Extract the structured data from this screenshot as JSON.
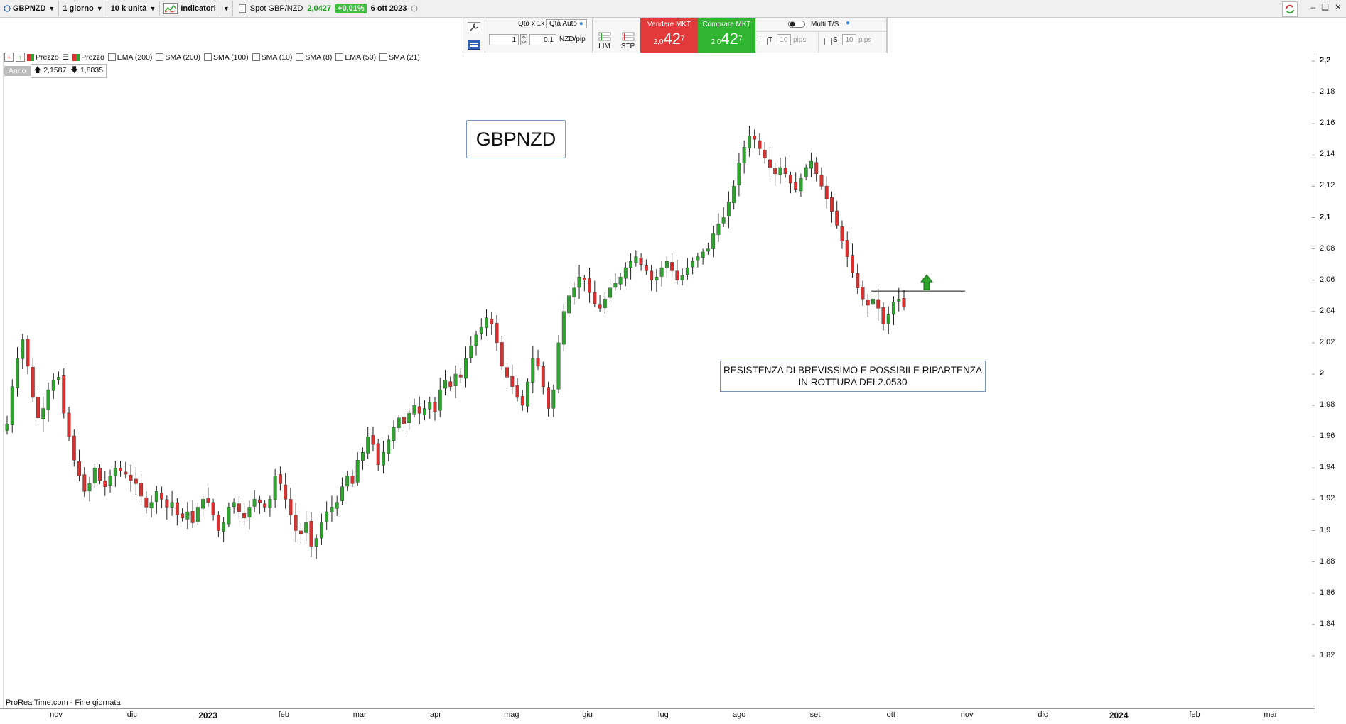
{
  "toolbar": {
    "symbol": "GBPNZD",
    "timeframe": "1 giorno",
    "units": "10 k unità",
    "indicators_label": "Indicatori",
    "spot_label": "Spot GBP/NZD",
    "spot_price": "2,0427",
    "spot_change": "+0,01%",
    "date": "6 ott 2023"
  },
  "order_panel": {
    "qty_label": "Qtà  x 1k",
    "qty_auto_label": "Qtà Auto",
    "qty_value": "1",
    "pip_value": "0.1",
    "pip_unit": "NZD/pip",
    "lim_label": "LIM",
    "stp_label": "STP",
    "sell_label": "Vendere MKT",
    "sell_prefix": "2,0",
    "sell_big": "42",
    "sell_sup": "7",
    "buy_label": "Comprare MKT",
    "buy_prefix": "2,0",
    "buy_big": "42",
    "buy_sup": "7",
    "multi_label": "Multi T/S",
    "t_label": "T",
    "s_label": "S",
    "t_value": "10",
    "s_value": "10",
    "pips_label": "pips"
  },
  "legend": {
    "items": [
      "Prezzo",
      "Prezzo",
      "EMA (200)",
      "SMA (200)",
      "SMA (100)",
      "SMA (10)",
      "SMA (8)",
      "EMA (50)",
      "SMA (21)"
    ],
    "range_label": "Anno",
    "high": "2,1587",
    "low": "1,8835"
  },
  "annotations": {
    "title": "GBPNZD",
    "note_line1": "RESISTENZA DI BREVISSIMO E POSSIBILE RIPARTENZA",
    "note_line2": "IN ROTTURA DEI 2.0530"
  },
  "footer": {
    "source": "ProRealTime.com - Fine giornata"
  },
  "chart_data": {
    "type": "candlestick",
    "ylim": [
      1.8,
      2.2
    ],
    "yticks": [
      "2,2",
      "2,18",
      "2,16",
      "2,14",
      "2,12",
      "2,1",
      "2,08",
      "2,06",
      "2,04",
      "2,02",
      "2",
      "1,98",
      "1,96",
      "1,94",
      "1,92",
      "1,9",
      "1,88",
      "1,86",
      "1,84",
      "1,82"
    ],
    "xticks": [
      "nov",
      "dic",
      "2023",
      "feb",
      "mar",
      "apr",
      "mag",
      "giu",
      "lug",
      "ago",
      "set",
      "ott",
      "nov",
      "dic",
      "2024",
      "feb",
      "mar"
    ],
    "resistance_level": 2.053,
    "closes": [
      1.968,
      1.992,
      2.01,
      2.022,
      2.005,
      1.985,
      1.972,
      1.978,
      1.99,
      1.996,
      1.998,
      1.975,
      1.96,
      1.945,
      1.935,
      1.925,
      1.93,
      1.94,
      1.932,
      1.928,
      1.935,
      1.94,
      1.938,
      1.936,
      1.932,
      1.93,
      1.922,
      1.915,
      1.918,
      1.925,
      1.92,
      1.915,
      1.918,
      1.91,
      1.908,
      1.912,
      1.905,
      1.915,
      1.92,
      1.918,
      1.91,
      1.9,
      1.905,
      1.915,
      1.918,
      1.912,
      1.908,
      1.915,
      1.92,
      1.918,
      1.915,
      1.92,
      1.935,
      1.93,
      1.92,
      1.91,
      1.9,
      1.898,
      1.905,
      1.89,
      1.895,
      1.905,
      1.912,
      1.915,
      1.918,
      1.928,
      1.935,
      1.93,
      1.945,
      1.95,
      1.96,
      1.955,
      1.942,
      1.95,
      1.958,
      1.966,
      1.972,
      1.968,
      1.975,
      1.98,
      1.975,
      1.978,
      1.982,
      1.976,
      1.99,
      1.996,
      1.992,
      2.0,
      1.998,
      2.01,
      2.018,
      2.025,
      2.03,
      2.036,
      2.032,
      2.02,
      2.005,
      1.998,
      1.992,
      1.985,
      1.98,
      1.995,
      2.01,
      2.005,
      1.992,
      1.978,
      1.99,
      2.02,
      2.04,
      2.05,
      2.055,
      2.062,
      2.06,
      2.052,
      2.045,
      2.042,
      2.048,
      2.055,
      2.058,
      2.062,
      2.068,
      2.072,
      2.075,
      2.07,
      2.066,
      2.06,
      2.062,
      2.068,
      2.072,
      2.066,
      2.06,
      2.063,
      2.068,
      2.072,
      2.075,
      2.078,
      2.08,
      2.09,
      2.096,
      2.1,
      2.11,
      2.12,
      2.135,
      2.145,
      2.152,
      2.15,
      2.144,
      2.138,
      2.132,
      2.128,
      2.132,
      2.128,
      2.122,
      2.118,
      2.125,
      2.132,
      2.136,
      2.128,
      2.12,
      2.112,
      2.104,
      2.095,
      2.085,
      2.075,
      2.065,
      2.055,
      2.048,
      2.044,
      2.048,
      2.042,
      2.032,
      2.038,
      2.046,
      2.048,
      2.043
    ],
    "last_price": 2.0427
  }
}
